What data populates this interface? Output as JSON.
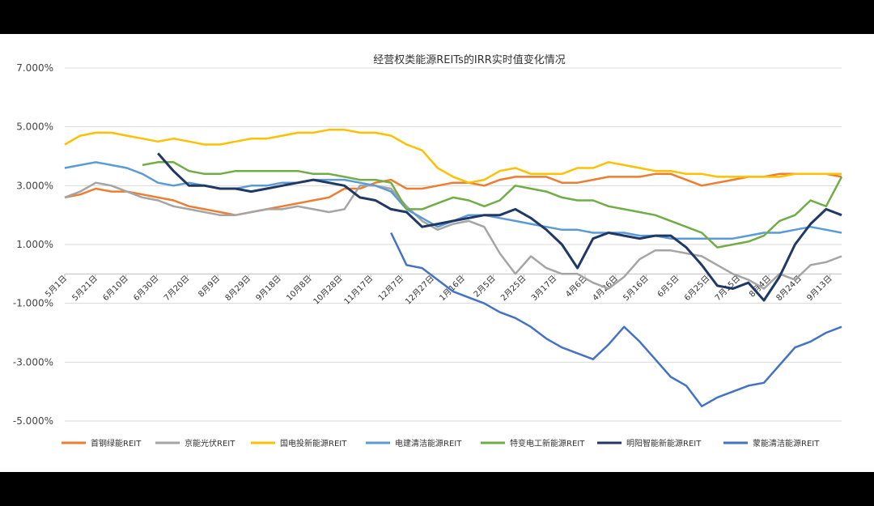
{
  "chart_data": {
    "type": "line",
    "title": "经营权类能源REITs的IRR实时值变化情况",
    "y_ticks": [
      "7.000%",
      "5.000%",
      "3.000%",
      "1.000%",
      "-1.000%",
      "-3.000%",
      "-5.000%"
    ],
    "y_values": [
      7,
      5,
      3,
      1,
      -1,
      -3,
      -5
    ],
    "ylim": [
      -5,
      7
    ],
    "grid": true,
    "legend_position": "bottom",
    "x_ticks": [
      "5月1日",
      "5月21日",
      "6月10日",
      "6月30日",
      "7月20日",
      "8月9日",
      "8月29日",
      "9月18日",
      "10月8日",
      "10月28日",
      "11月17日",
      "12月7日",
      "12月27日",
      "1月16日",
      "2月5日",
      "2月25日",
      "3月17日",
      "4月6日",
      "4月26日",
      "5月16日",
      "6月5日",
      "6月25日",
      "7月15日",
      "8月4日",
      "8月24日",
      "9月13日"
    ],
    "series": [
      {
        "name": "首钢绿能REIT",
        "color": "#ed7d31",
        "values": [
          2.6,
          2.7,
          2.9,
          2.8,
          2.8,
          2.7,
          2.6,
          2.5,
          2.3,
          2.2,
          2.1,
          2.0,
          2.1,
          2.2,
          2.3,
          2.4,
          2.5,
          2.6,
          2.9,
          2.9,
          3.1,
          3.2,
          2.9,
          2.9,
          3.0,
          3.1,
          3.1,
          3.0,
          3.2,
          3.3,
          3.3,
          3.3,
          3.1,
          3.1,
          3.2,
          3.3,
          3.3,
          3.3,
          3.4,
          3.4,
          3.2,
          3.0,
          3.1,
          3.2,
          3.3,
          3.3,
          3.4,
          3.4,
          3.4,
          3.4,
          3.3
        ]
      },
      {
        "name": "京能光伏REIT",
        "color": "#a5a5a5",
        "values": [
          2.6,
          2.8,
          3.1,
          3.0,
          2.8,
          2.6,
          2.5,
          2.3,
          2.2,
          2.1,
          2.0,
          2.0,
          2.1,
          2.2,
          2.2,
          2.3,
          2.2,
          2.1,
          2.2,
          3.0,
          3.0,
          2.9,
          2.3,
          1.8,
          1.5,
          1.7,
          1.8,
          1.6,
          0.7,
          0.0,
          0.6,
          0.2,
          0.0,
          0.0,
          -0.3,
          -0.5,
          -0.1,
          0.5,
          0.8,
          0.8,
          0.7,
          0.6,
          0.3,
          0.0,
          -0.2,
          -0.5,
          0.0,
          -0.2,
          0.3,
          0.4,
          0.6
        ]
      },
      {
        "name": "国电投新能源REIT",
        "color": "#ffc000",
        "values": [
          4.4,
          4.7,
          4.8,
          4.8,
          4.7,
          4.6,
          4.5,
          4.6,
          4.5,
          4.4,
          4.4,
          4.5,
          4.6,
          4.6,
          4.7,
          4.8,
          4.8,
          4.9,
          4.9,
          4.8,
          4.8,
          4.7,
          4.4,
          4.2,
          3.6,
          3.3,
          3.1,
          3.2,
          3.5,
          3.6,
          3.4,
          3.4,
          3.4,
          3.6,
          3.6,
          3.8,
          3.7,
          3.6,
          3.5,
          3.5,
          3.4,
          3.4,
          3.3,
          3.3,
          3.3,
          3.3,
          3.3,
          3.4,
          3.4,
          3.4,
          3.4
        ]
      },
      {
        "name": "电建清洁能源REIT",
        "color": "#5b9bd5",
        "values": [
          3.6,
          3.7,
          3.8,
          3.7,
          3.6,
          3.4,
          3.1,
          3.0,
          3.1,
          3.0,
          2.9,
          2.9,
          3.0,
          3.0,
          3.1,
          3.1,
          3.2,
          3.2,
          3.2,
          3.1,
          3.0,
          2.8,
          2.2,
          1.9,
          1.6,
          1.8,
          2.0,
          2.0,
          1.9,
          1.8,
          1.7,
          1.6,
          1.5,
          1.5,
          1.4,
          1.4,
          1.4,
          1.3,
          1.3,
          1.2,
          1.2,
          1.2,
          1.2,
          1.2,
          1.3,
          1.4,
          1.4,
          1.5,
          1.6,
          1.5,
          1.4
        ]
      },
      {
        "name": "特变电工新能源REIT",
        "color": "#70ad47",
        "values": [
          null,
          null,
          null,
          null,
          null,
          3.7,
          3.8,
          3.8,
          3.5,
          3.4,
          3.4,
          3.5,
          3.5,
          3.5,
          3.5,
          3.5,
          3.4,
          3.4,
          3.3,
          3.2,
          3.2,
          3.1,
          2.2,
          2.2,
          2.4,
          2.6,
          2.5,
          2.3,
          2.5,
          3.0,
          2.9,
          2.8,
          2.6,
          2.5,
          2.5,
          2.3,
          2.2,
          2.1,
          2.0,
          1.8,
          1.6,
          1.4,
          0.9,
          1.0,
          1.1,
          1.3,
          1.8,
          2.0,
          2.5,
          2.3,
          3.3
        ]
      },
      {
        "name": "明阳智能新能源REIT",
        "color": "#203864",
        "values": [
          null,
          null,
          null,
          null,
          null,
          null,
          4.1,
          3.5,
          3.0,
          3.0,
          2.9,
          2.9,
          2.8,
          2.9,
          3.0,
          3.1,
          3.2,
          3.1,
          3.0,
          2.6,
          2.5,
          2.2,
          2.1,
          1.6,
          1.7,
          1.8,
          1.9,
          2.0,
          2.0,
          2.2,
          1.9,
          1.5,
          1.0,
          0.2,
          1.2,
          1.4,
          1.3,
          1.2,
          1.3,
          1.3,
          0.9,
          0.3,
          -0.4,
          -0.5,
          -0.3,
          -0.9,
          -0.1,
          1.0,
          1.7,
          2.2,
          2.0
        ]
      },
      {
        "name": "蒙能清洁能源REIT",
        "color": "#4472c4",
        "values": [
          null,
          null,
          null,
          null,
          null,
          null,
          null,
          null,
          null,
          null,
          null,
          null,
          null,
          null,
          null,
          null,
          null,
          null,
          null,
          null,
          null,
          1.4,
          0.3,
          0.2,
          -0.2,
          -0.6,
          -0.8,
          -1.0,
          -1.3,
          -1.5,
          -1.8,
          -2.2,
          -2.5,
          -2.7,
          -2.9,
          -2.4,
          -1.8,
          -2.3,
          -2.9,
          -3.5,
          -3.8,
          -4.5,
          -4.2,
          -4.0,
          -3.8,
          -3.7,
          -3.1,
          -2.5,
          -2.3,
          -2.0,
          -1.8
        ]
      }
    ]
  }
}
